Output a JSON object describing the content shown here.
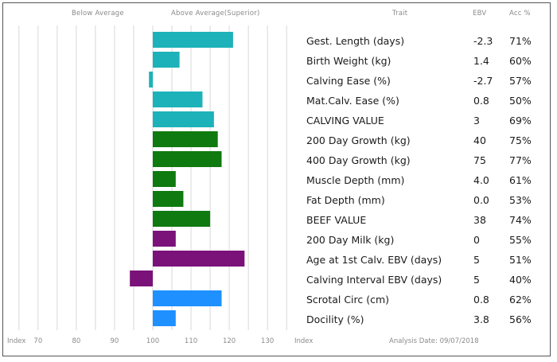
{
  "header": {
    "below_average": "Below Average",
    "above_average": "Above Average(Superior)",
    "trait": "Trait",
    "ebv": "EBV",
    "acc": "Acc %"
  },
  "footer": {
    "index_left": "Index",
    "index_right": "Index",
    "analysis_date": "Analysis Date: 09/07/2018"
  },
  "colors": {
    "calving": "#1db2b9",
    "growth": "#0f7a0f",
    "milk": "#7a127a",
    "fertility": "#1e90ff",
    "grid": "#d8d8d8"
  },
  "chart_data": {
    "type": "bar",
    "orientation": "horizontal",
    "baseline": 100,
    "xlim": [
      64,
      136
    ],
    "xticks": [
      70,
      80,
      90,
      100,
      110,
      120,
      130
    ],
    "grid": true,
    "categories": [
      "Gest. Length (days)",
      "Birth Weight (kg)",
      "Calving Ease (%)",
      "Mat.Calv. Ease (%)",
      "CALVING VALUE",
      "200 Day Growth (kg)",
      "400 Day Growth (kg)",
      "Muscle Depth (mm)",
      "Fat Depth (mm)",
      "BEEF VALUE",
      "200 Day Milk (kg)",
      "Age at 1st Calv. EBV (days)",
      "Calving Interval EBV (days)",
      "Scrotal Circ (cm)",
      "Docility (%)"
    ],
    "ebv": [
      "-2.3",
      "1.4",
      "-2.7",
      "0.8",
      "3",
      "40",
      "75",
      "4.0",
      "0.0",
      "38",
      "0",
      "5",
      "5",
      "0.8",
      "3.8"
    ],
    "acc": [
      "71%",
      "60%",
      "57%",
      "50%",
      "69%",
      "75%",
      "77%",
      "61%",
      "53%",
      "74%",
      "55%",
      "51%",
      "40%",
      "62%",
      "56%"
    ],
    "index_values": [
      121,
      107,
      99,
      113,
      116,
      117,
      118,
      106,
      108,
      115,
      106,
      124,
      94,
      118,
      106
    ],
    "color_groups": [
      "calving",
      "calving",
      "calving",
      "calving",
      "calving",
      "growth",
      "growth",
      "growth",
      "growth",
      "growth",
      "milk",
      "milk",
      "milk",
      "fertility",
      "fertility"
    ]
  }
}
